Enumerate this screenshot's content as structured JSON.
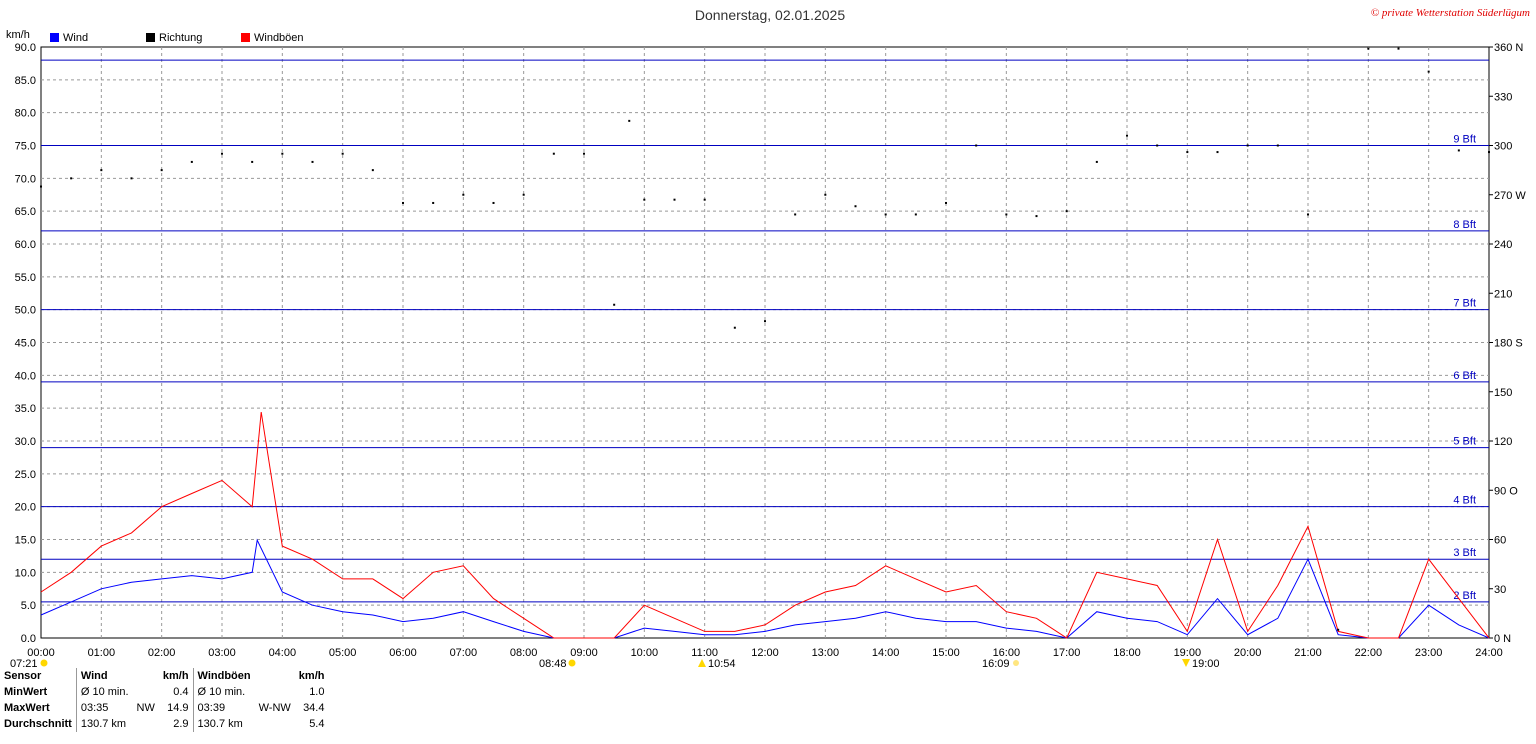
{
  "header": {
    "title": "Donnerstag, 02.01.2025",
    "copyright": "© private Wetterstation Süderlügum",
    "unit_label": "km/h"
  },
  "legend": [
    {
      "label": "Wind",
      "color": "#0000ff"
    },
    {
      "label": "Richtung",
      "color": "#000000"
    },
    {
      "label": "Windböen",
      "color": "#ff0000"
    }
  ],
  "sun": {
    "sunrise": "07:21",
    "sunrise_mark": "08:48",
    "moon1": "10:54",
    "moon2": "16:09",
    "moon3": "19:00"
  },
  "chart_data": {
    "type": "line",
    "title": "Donnerstag, 02.01.2025",
    "ylabel": "km/h",
    "ylim": [
      0,
      90
    ],
    "y2lim": [
      0,
      360
    ],
    "x_ticks": [
      "00:00",
      "01:00",
      "02:00",
      "03:00",
      "04:00",
      "05:00",
      "06:00",
      "07:00",
      "08:00",
      "09:00",
      "10:00",
      "11:00",
      "12:00",
      "13:00",
      "14:00",
      "15:00",
      "16:00",
      "17:00",
      "18:00",
      "19:00",
      "20:00",
      "21:00",
      "22:00",
      "23:00",
      "24:00"
    ],
    "y_ticks": [
      "0.0",
      "5.0",
      "10.0",
      "15.0",
      "20.0",
      "25.0",
      "30.0",
      "35.0",
      "40.0",
      "45.0",
      "50.0",
      "55.0",
      "60.0",
      "65.0",
      "70.0",
      "75.0",
      "80.0",
      "85.0",
      "90.0"
    ],
    "y2_ticks": [
      "0 N",
      "30",
      "60",
      "90 O",
      "120",
      "150",
      "180 S",
      "210",
      "240",
      "270 W",
      "300",
      "330",
      "360 N"
    ],
    "beaufort": [
      {
        "label": "2 Bft",
        "value": 5.5
      },
      {
        "label": "3 Bft",
        "value": 12
      },
      {
        "label": "4 Bft",
        "value": 20
      },
      {
        "label": "5 Bft",
        "value": 29
      },
      {
        "label": "6 Bft",
        "value": 39
      },
      {
        "label": "7 Bft",
        "value": 50
      },
      {
        "label": "8 Bft",
        "value": 62
      },
      {
        "label": "9 Bft",
        "value": 75
      }
    ],
    "beaufort_top": 88,
    "series": [
      {
        "name": "Wind",
        "color": "#0000ff",
        "x": [
          0,
          0.5,
          1,
          1.5,
          2,
          2.5,
          3,
          3.5,
          3.583,
          4,
          4.5,
          5,
          5.5,
          6,
          6.5,
          7,
          7.5,
          8,
          8.5,
          9,
          9.5,
          10,
          10.5,
          11,
          11.5,
          12,
          12.5,
          13,
          13.5,
          14,
          14.5,
          15,
          15.5,
          16,
          16.5,
          17,
          17.5,
          18,
          18.5,
          19,
          19.5,
          20,
          20.5,
          21,
          21.5,
          22,
          22.5,
          23,
          23.5,
          24
        ],
        "values": [
          3.5,
          5.5,
          7.5,
          8.5,
          9,
          9.5,
          9,
          10,
          14.9,
          7,
          5,
          4,
          3.5,
          2.5,
          3,
          4,
          2.5,
          1,
          0,
          0,
          0,
          1.5,
          1,
          0.5,
          0.5,
          1,
          2,
          2.5,
          3,
          4,
          3,
          2.5,
          2.5,
          1.5,
          1,
          0,
          4,
          3,
          2.5,
          0.5,
          6,
          0.5,
          3,
          12,
          0.5,
          0,
          0,
          5,
          2,
          0
        ]
      },
      {
        "name": "Windböen",
        "color": "#ff0000",
        "x": [
          0,
          0.5,
          1,
          1.5,
          2,
          2.5,
          3,
          3.5,
          3.65,
          4,
          4.5,
          5,
          5.5,
          6,
          6.5,
          7,
          7.5,
          8,
          8.5,
          9,
          9.5,
          10,
          10.5,
          11,
          11.5,
          12,
          12.5,
          13,
          13.5,
          14,
          14.5,
          15,
          15.5,
          16,
          16.5,
          17,
          17.5,
          18,
          18.5,
          19,
          19.5,
          20,
          20.5,
          21,
          21.5,
          22,
          22.5,
          23,
          23.5,
          24
        ],
        "values": [
          7,
          10,
          14,
          16,
          20,
          22,
          24,
          20,
          34.4,
          14,
          12,
          9,
          9,
          6,
          10,
          11,
          6,
          3,
          0,
          0,
          0,
          5,
          3,
          1,
          1,
          2,
          5,
          7,
          8,
          11,
          9,
          7,
          8,
          4,
          3,
          0,
          10,
          9,
          8,
          1,
          15,
          1,
          8,
          17,
          1,
          0,
          0,
          12,
          6,
          0
        ]
      },
      {
        "name": "Richtung",
        "color": "#000000",
        "axis": "right",
        "x": [
          0,
          0.5,
          1,
          1.5,
          2,
          2.5,
          3,
          3.5,
          4,
          4.5,
          5,
          5.5,
          6,
          6.5,
          7,
          7.5,
          8,
          8.5,
          9,
          9.5,
          9.75,
          10,
          10.5,
          11,
          11.5,
          12,
          12.5,
          13,
          13.5,
          14,
          14.5,
          15,
          15.5,
          16,
          16.5,
          17,
          17.5,
          18,
          18.5,
          19,
          19.5,
          20,
          20.5,
          21,
          21.5,
          22,
          22.5,
          23,
          23.5,
          24
        ],
        "values": [
          275,
          280,
          285,
          280,
          285,
          290,
          295,
          290,
          295,
          290,
          295,
          285,
          265,
          265,
          270,
          265,
          270,
          295,
          295,
          203,
          315,
          267,
          267,
          267,
          189,
          193,
          258,
          270,
          263,
          258,
          258,
          265,
          300,
          258,
          257,
          260,
          290,
          306,
          300,
          296,
          296,
          300,
          300,
          258,
          5,
          359,
          359,
          345,
          297,
          296
        ]
      }
    ]
  },
  "stats": {
    "headers": [
      "Sensor",
      "Wind",
      "km/h",
      "Windböen",
      "km/h"
    ],
    "rows": [
      [
        "MinWert",
        "Ø 10 min.",
        "",
        "0.4",
        "Ø 10 min.",
        "",
        "1.0"
      ],
      [
        "MaxWert",
        "03:35",
        "NW",
        "14.9",
        "03:39",
        "W-NW",
        "34.4"
      ],
      [
        "Durchschnitt",
        "130.7 km",
        "",
        "2.9",
        "130.7 km",
        "",
        "5.4"
      ]
    ]
  }
}
